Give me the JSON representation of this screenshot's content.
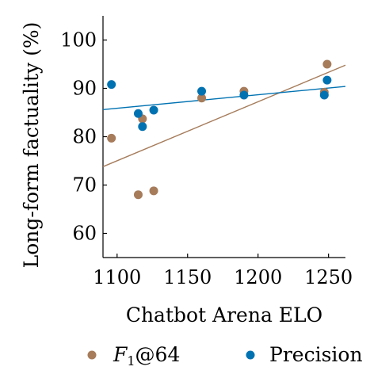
{
  "chart_data": {
    "type": "scatter",
    "xlabel": "Chatbot Arena ELO",
    "ylabel": "Long-form factuality (%)",
    "xlim": [
      1090,
      1262
    ],
    "ylim": [
      55,
      105
    ],
    "xticks": [
      1100,
      1150,
      1200,
      1250
    ],
    "yticks": [
      60,
      70,
      80,
      90,
      100
    ],
    "grid": false,
    "legend_position": "bottom",
    "series": [
      {
        "name": "F1@64",
        "legend_main": "F",
        "legend_sub": "1",
        "legend_suffix": "@64",
        "color": "#a67c5b",
        "points": [
          {
            "x": 1096,
            "y": 79.7
          },
          {
            "x": 1115,
            "y": 68.0
          },
          {
            "x": 1118,
            "y": 83.7
          },
          {
            "x": 1126,
            "y": 68.8
          },
          {
            "x": 1160,
            "y": 88.0
          },
          {
            "x": 1190,
            "y": 89.4
          },
          {
            "x": 1247,
            "y": 89.2
          },
          {
            "x": 1249,
            "y": 95.0
          }
        ],
        "trend": {
          "x1": 1090,
          "y1": 73.8,
          "x2": 1262,
          "y2": 94.8
        }
      },
      {
        "name": "Precision",
        "color": "#0072b2",
        "points": [
          {
            "x": 1096,
            "y": 90.8
          },
          {
            "x": 1115,
            "y": 84.8
          },
          {
            "x": 1118,
            "y": 82.1
          },
          {
            "x": 1126,
            "y": 85.5
          },
          {
            "x": 1160,
            "y": 89.4
          },
          {
            "x": 1190,
            "y": 88.6
          },
          {
            "x": 1247,
            "y": 88.6
          },
          {
            "x": 1249,
            "y": 91.7
          }
        ],
        "trend": {
          "x1": 1090,
          "y1": 85.6,
          "x2": 1262,
          "y2": 90.4
        }
      }
    ]
  }
}
